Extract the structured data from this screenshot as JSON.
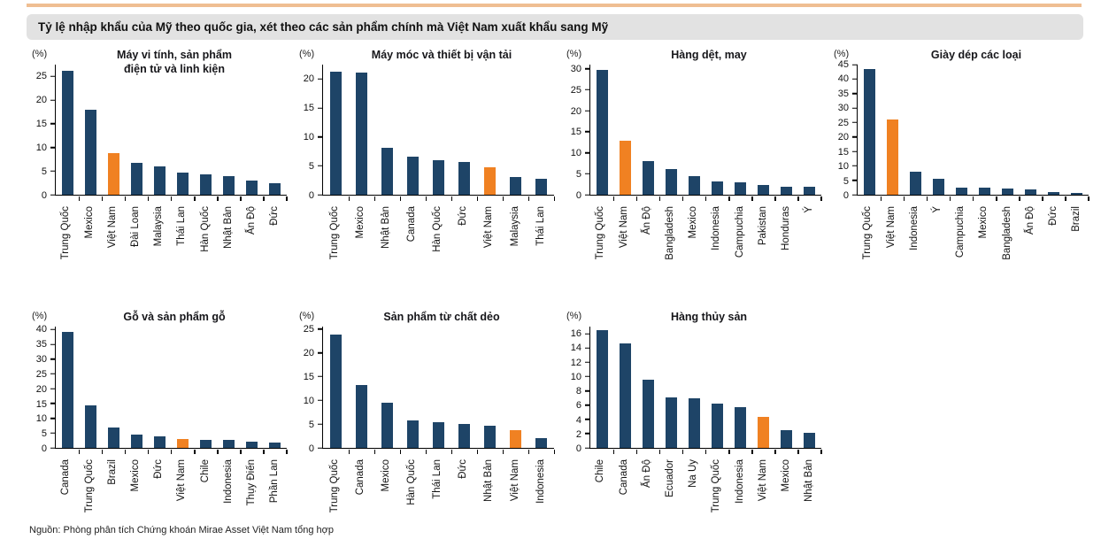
{
  "header": {
    "title": "Tỷ lệ nhập khẩu của Mỹ theo quốc gia, xét theo các sản phẩm chính mà Việt Nam xuất khẩu sang Mỹ"
  },
  "footer": {
    "source": "Nguồn: Phòng phân tích Chứng khoán Mirae Asset Việt Nam tổng hợp"
  },
  "colors": {
    "bar": "#1E4467",
    "highlight": "#F08122",
    "top_rule": "#EFBE92",
    "header_bg": "#E2E2E2"
  },
  "chart_data": [
    {
      "type": "bar",
      "title": "Máy vi tính, sản phẩm\nđiện tử và linh kiện",
      "unit": "(%)",
      "categories": [
        "Trung Quốc",
        "Mexico",
        "Việt Nam",
        "Đài Loan",
        "Malaysia",
        "Thái Lan",
        "Hàn Quốc",
        "Nhật Bản",
        "Ấn Độ",
        "Đức"
      ],
      "values": [
        26.1,
        18.0,
        8.8,
        6.7,
        5.9,
        4.7,
        4.3,
        3.9,
        3.0,
        2.4
      ],
      "highlight_category": "Việt Nam",
      "ymax": 27.5,
      "yticks": [
        0,
        5,
        10,
        15,
        20,
        25
      ],
      "grid": false,
      "legend": "none"
    },
    {
      "type": "bar",
      "title": "Máy móc và thiết bị vận tải",
      "unit": "(%)",
      "categories": [
        "Trung Quốc",
        "Mexico",
        "Nhật Bản",
        "Canada",
        "Hàn Quốc",
        "Đức",
        "Việt Nam",
        "Malaysia",
        "Thái Lan"
      ],
      "values": [
        21.3,
        21.1,
        8.1,
        6.6,
        5.9,
        5.6,
        4.7,
        3.0,
        2.7
      ],
      "highlight_category": "Việt Nam",
      "ymax": 22.5,
      "yticks": [
        0,
        5,
        10,
        15,
        20
      ],
      "grid": false,
      "legend": "none"
    },
    {
      "type": "bar",
      "title": "Hàng dệt, may",
      "unit": "(%)",
      "categories": [
        "Trung Quốc",
        "Việt Nam",
        "Ấn Độ",
        "Bangladesh",
        "Mexico",
        "Indonesia",
        "Campuchia",
        "Pakistan",
        "Honduras",
        "Ý"
      ],
      "values": [
        29.7,
        12.8,
        8.0,
        6.1,
        4.5,
        3.2,
        3.0,
        2.4,
        2.0,
        1.8
      ],
      "highlight_category": "Việt Nam",
      "ymax": 31,
      "yticks": [
        0,
        5,
        10,
        15,
        20,
        25,
        30
      ],
      "grid": false,
      "legend": "none"
    },
    {
      "type": "bar",
      "title": "Giày dép các loại",
      "unit": "(%)",
      "categories": [
        "Trung Quốc",
        "Việt Nam",
        "Indonesia",
        "Ý",
        "Campuchia",
        "Mexico",
        "Bangladesh",
        "Ấn Độ",
        "Đức",
        "Brazil"
      ],
      "values": [
        43.5,
        26.0,
        8.0,
        5.5,
        2.4,
        2.4,
        2.2,
        1.7,
        0.8,
        0.6
      ],
      "highlight_category": "Việt Nam",
      "ymax": 45,
      "yticks": [
        0,
        5,
        10,
        15,
        20,
        25,
        30,
        35,
        40,
        45
      ],
      "grid": false,
      "legend": "none"
    },
    {
      "type": "bar",
      "title": "Gỗ và sản phẩm gỗ",
      "unit": "(%)",
      "categories": [
        "Canada",
        "Trung Quốc",
        "Brazil",
        "Mexico",
        "Đức",
        "Việt Nam",
        "Chile",
        "Indonesia",
        "Thụy Điển",
        "Phần Lan"
      ],
      "values": [
        39.3,
        14.3,
        7.0,
        4.4,
        4.0,
        3.0,
        2.8,
        2.7,
        2.0,
        1.9
      ],
      "highlight_category": "Việt Nam",
      "ymax": 41,
      "yticks": [
        0,
        5,
        10,
        15,
        20,
        25,
        30,
        35,
        40
      ],
      "grid": false,
      "legend": "none"
    },
    {
      "type": "bar",
      "title": "Sản phẩm từ chất dẻo",
      "unit": "(%)",
      "categories": [
        "Trung Quốc",
        "Canada",
        "Mexico",
        "Hàn Quốc",
        "Thái Lan",
        "Đức",
        "Nhật Bản",
        "Việt Nam",
        "Indonesia"
      ],
      "values": [
        23.9,
        13.3,
        9.5,
        5.8,
        5.4,
        5.0,
        4.7,
        3.8,
        2.1
      ],
      "highlight_category": "Việt Nam",
      "ymax": 25.5,
      "yticks": [
        0,
        5,
        10,
        15,
        20,
        25
      ],
      "grid": false,
      "legend": "none"
    },
    {
      "type": "bar",
      "title": "Hàng thủy sản",
      "unit": "(%)",
      "categories": [
        "Chile",
        "Canada",
        "Ấn Độ",
        "Ecuador",
        "Na Uy",
        "Trung Quốc",
        "Indonesia",
        "Việt Nam",
        "Mexico",
        "Nhật Bản"
      ],
      "values": [
        16.5,
        14.7,
        9.6,
        7.1,
        7.0,
        6.2,
        5.7,
        4.4,
        2.5,
        2.1
      ],
      "highlight_category": "Việt Nam",
      "ymax": 17,
      "yticks": [
        0,
        2,
        4,
        6,
        8,
        10,
        12,
        14,
        16
      ],
      "grid": false,
      "legend": "none"
    }
  ]
}
